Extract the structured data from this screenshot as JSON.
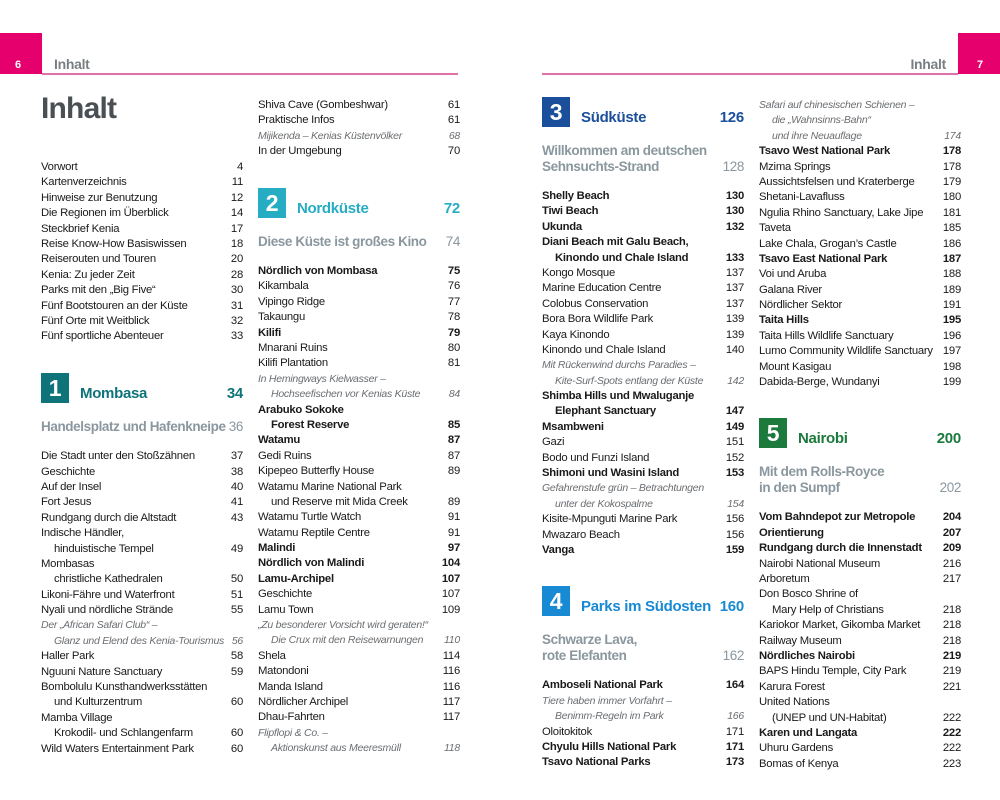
{
  "header": {
    "left_page_number": "6",
    "right_page_number": "7",
    "running_title_left": "Inhalt",
    "running_title_right": "Inhalt",
    "accent_color": "#e5006d"
  },
  "title": "Inhalt",
  "columns": [
    [
      {
        "k": "e",
        "s": "n",
        "t": "Vorwort",
        "p": "4"
      },
      {
        "k": "e",
        "s": "n",
        "t": "Kartenverzeichnis",
        "p": "11"
      },
      {
        "k": "e",
        "s": "n",
        "t": "Hinweise zur Benutzung",
        "p": "12"
      },
      {
        "k": "e",
        "s": "n",
        "t": "Die Regionen im Überblick",
        "p": "14"
      },
      {
        "k": "e",
        "s": "n",
        "t": "Steckbrief Kenia",
        "p": "17"
      },
      {
        "k": "e",
        "s": "n",
        "t": "Reise Know-How Basiswissen",
        "p": "18"
      },
      {
        "k": "e",
        "s": "n",
        "t": "Reiserouten und Touren",
        "p": "20"
      },
      {
        "k": "e",
        "s": "n",
        "t": "Kenia: Zu jeder Zeit",
        "p": "28"
      },
      {
        "k": "e",
        "s": "n",
        "t": "Parks mit den „Big Five“",
        "p": "30"
      },
      {
        "k": "e",
        "s": "n",
        "t": "Fünf Bootstouren an der Küste",
        "p": "31"
      },
      {
        "k": "e",
        "s": "n",
        "t": "Fünf Orte mit Weitblick",
        "p": "32"
      },
      {
        "k": "e",
        "s": "n",
        "t": "Fünf sportliche Abenteuer",
        "p": "33"
      },
      {
        "k": "c",
        "num": "1",
        "t": "Mombasa",
        "p": "34",
        "color": "#0f7479"
      },
      {
        "k": "s",
        "lines": [
          "Handelsplatz und Hafenkneipe"
        ],
        "p": "36"
      },
      {
        "k": "e",
        "s": "n",
        "t": "Die Stadt unter den Stoßzähnen",
        "p": "37"
      },
      {
        "k": "e",
        "s": "n",
        "t": "Geschichte",
        "p": "38"
      },
      {
        "k": "e",
        "s": "n",
        "t": "Auf der Insel",
        "p": "40"
      },
      {
        "k": "e",
        "s": "n",
        "t": "Fort Jesus",
        "p": "41"
      },
      {
        "k": "e",
        "s": "n",
        "t": "Rundgang durch die Altstadt",
        "p": "43"
      },
      {
        "k": "e",
        "s": "n",
        "lines": [
          "Indische Händler,",
          "hinduistische Tempel"
        ],
        "p": "49"
      },
      {
        "k": "e",
        "s": "n",
        "lines": [
          "Mombasas",
          "christliche Kathedralen"
        ],
        "p": "50"
      },
      {
        "k": "e",
        "s": "n",
        "t": "Likoni-Fähre und Waterfront",
        "p": "51"
      },
      {
        "k": "e",
        "s": "n",
        "t": "Nyali und nördliche Strände",
        "p": "55"
      },
      {
        "k": "e",
        "s": "i",
        "lines": [
          "Der „African Safari Club“ –",
          "Glanz und Elend des Kenia-Tourismus"
        ],
        "p": "56"
      },
      {
        "k": "e",
        "s": "n",
        "t": "Haller Park",
        "p": "58"
      },
      {
        "k": "e",
        "s": "n",
        "t": "Nguuni Nature Sanctuary",
        "p": "59"
      },
      {
        "k": "e",
        "s": "n",
        "lines": [
          "Bombolulu Kunsthandwerksstätten",
          "und Kulturzentrum"
        ],
        "p": "60"
      },
      {
        "k": "e",
        "s": "n",
        "lines": [
          "Mamba Village",
          "Krokodil- und Schlangenfarm"
        ],
        "p": "60"
      },
      {
        "k": "e",
        "s": "n",
        "t": "Wild Waters Entertainment Park",
        "p": "60"
      }
    ],
    [
      {
        "k": "e",
        "s": "n",
        "t": "Shiva Cave (Gombeshwar)",
        "p": "61"
      },
      {
        "k": "e",
        "s": "n",
        "t": "Praktische Infos",
        "p": "61"
      },
      {
        "k": "e",
        "s": "i",
        "t": "Mijikenda – Kenias Küstenvölker",
        "p": "68"
      },
      {
        "k": "e",
        "s": "n",
        "t": "In der Umgebung",
        "p": "70"
      },
      {
        "k": "c",
        "num": "2",
        "t": "Nordküste",
        "p": "72",
        "color": "#27adc3"
      },
      {
        "k": "s",
        "lines": [
          "Diese Küste ist großes Kino"
        ],
        "p": "74"
      },
      {
        "k": "e",
        "s": "b",
        "t": "Nördlich von Mombasa",
        "p": "75"
      },
      {
        "k": "e",
        "s": "n",
        "t": "Kikambala",
        "p": "76"
      },
      {
        "k": "e",
        "s": "n",
        "t": "Vipingo Ridge",
        "p": "77"
      },
      {
        "k": "e",
        "s": "n",
        "t": "Takaungu",
        "p": "78"
      },
      {
        "k": "e",
        "s": "b",
        "t": "Kilifi",
        "p": "79"
      },
      {
        "k": "e",
        "s": "n",
        "t": "Mnarani Ruins",
        "p": "80"
      },
      {
        "k": "e",
        "s": "n",
        "t": "Kilifi Plantation",
        "p": "81"
      },
      {
        "k": "e",
        "s": "i",
        "lines": [
          "In Hemingways Kielwasser –",
          "Hochseefischen vor Kenias Küste"
        ],
        "p": "84"
      },
      {
        "k": "e",
        "s": "b",
        "lines": [
          "Arabuko Sokoke",
          "Forest Reserve"
        ],
        "p": "85"
      },
      {
        "k": "e",
        "s": "b",
        "t": "Watamu",
        "p": "87"
      },
      {
        "k": "e",
        "s": "n",
        "t": "Gedi Ruins",
        "p": "87"
      },
      {
        "k": "e",
        "s": "n",
        "t": "Kipepeo Butterfly House",
        "p": "89"
      },
      {
        "k": "e",
        "s": "n",
        "lines": [
          "Watamu Marine National Park",
          "und Reserve mit Mida Creek"
        ],
        "p": "89"
      },
      {
        "k": "e",
        "s": "n",
        "t": "Watamu Turtle Watch",
        "p": "91"
      },
      {
        "k": "e",
        "s": "n",
        "t": "Watamu Reptile Centre",
        "p": "91"
      },
      {
        "k": "e",
        "s": "b",
        "t": "Malindi",
        "p": "97"
      },
      {
        "k": "e",
        "s": "b",
        "t": "Nördlich von Malindi",
        "p": "104"
      },
      {
        "k": "e",
        "s": "b",
        "t": "Lamu-Archipel",
        "p": "107"
      },
      {
        "k": "e",
        "s": "n",
        "t": "Geschichte",
        "p": "107"
      },
      {
        "k": "e",
        "s": "n",
        "t": "Lamu Town",
        "p": "109"
      },
      {
        "k": "e",
        "s": "i",
        "lines": [
          "„Zu besonderer Vorsicht wird geraten!“",
          "Die Crux mit den Reisewarnungen"
        ],
        "p": "110"
      },
      {
        "k": "e",
        "s": "n",
        "t": "Shela",
        "p": "114"
      },
      {
        "k": "e",
        "s": "n",
        "t": "Matondoni",
        "p": "116"
      },
      {
        "k": "e",
        "s": "n",
        "t": "Manda Island",
        "p": "116"
      },
      {
        "k": "e",
        "s": "n",
        "t": "Nördlicher Archipel",
        "p": "117"
      },
      {
        "k": "e",
        "s": "n",
        "t": "Dhau-Fahrten",
        "p": "117"
      },
      {
        "k": "e",
        "s": "i",
        "lines": [
          "Flipflopi & Co. –",
          "Aktionskunst aus Meeresmüll"
        ],
        "p": "118"
      }
    ],
    [
      {
        "k": "c",
        "num": "3",
        "t": "Südküste",
        "p": "126",
        "color": "#1b4f9b"
      },
      {
        "k": "s",
        "lines": [
          "Willkommen am deutschen",
          "Sehnsuchts-Strand"
        ],
        "p": "128"
      },
      {
        "k": "e",
        "s": "b",
        "t": "Shelly Beach",
        "p": "130"
      },
      {
        "k": "e",
        "s": "b",
        "t": "Tiwi Beach",
        "p": "130"
      },
      {
        "k": "e",
        "s": "b",
        "t": "Ukunda",
        "p": "132"
      },
      {
        "k": "e",
        "s": "b",
        "lines": [
          "Diani Beach mit Galu Beach,",
          "Kinondo und Chale Island"
        ],
        "p": "133"
      },
      {
        "k": "e",
        "s": "n",
        "t": "Kongo Mosque",
        "p": "137"
      },
      {
        "k": "e",
        "s": "n",
        "t": "Marine Education Centre",
        "p": "137"
      },
      {
        "k": "e",
        "s": "n",
        "t": "Colobus Conservation",
        "p": "137"
      },
      {
        "k": "e",
        "s": "n",
        "t": "Bora Bora Wildlife Park",
        "p": "139"
      },
      {
        "k": "e",
        "s": "n",
        "t": "Kaya Kinondo",
        "p": "139"
      },
      {
        "k": "e",
        "s": "n",
        "t": "Kinondo und Chale Island",
        "p": "140"
      },
      {
        "k": "e",
        "s": "i",
        "lines": [
          "Mit Rückenwind durchs Paradies –",
          "Kite-Surf-Spots entlang der Küste"
        ],
        "p": "142"
      },
      {
        "k": "e",
        "s": "b",
        "lines": [
          "Shimba Hills und Mwaluganje",
          "Elephant Sanctuary"
        ],
        "p": "147"
      },
      {
        "k": "e",
        "s": "b",
        "t": "Msambweni",
        "p": "149"
      },
      {
        "k": "e",
        "s": "n",
        "t": "Gazi",
        "p": "151"
      },
      {
        "k": "e",
        "s": "n",
        "t": "Bodo und Funzi Island",
        "p": "152"
      },
      {
        "k": "e",
        "s": "b",
        "t": "Shimoni und Wasini Island",
        "p": "153"
      },
      {
        "k": "e",
        "s": "i",
        "lines": [
          "Gefahrenstufe grün – Betrachtungen",
          "unter der Kokospalme"
        ],
        "p": "154"
      },
      {
        "k": "e",
        "s": "n",
        "t": "Kisite-Mpunguti Marine Park",
        "p": "156"
      },
      {
        "k": "e",
        "s": "n",
        "t": "Mwazaro Beach",
        "p": "156"
      },
      {
        "k": "e",
        "s": "b",
        "t": "Vanga",
        "p": "159"
      },
      {
        "k": "c",
        "num": "4",
        "t": "Parks im Südosten",
        "p": "160",
        "color": "#1889d3"
      },
      {
        "k": "s",
        "lines": [
          "Schwarze Lava,",
          "rote Elefanten"
        ],
        "p": "162"
      },
      {
        "k": "e",
        "s": "b",
        "t": "Amboseli National Park",
        "p": "164"
      },
      {
        "k": "e",
        "s": "i",
        "lines": [
          "Tiere haben immer Vorfahrt –",
          "Benimm-Regeln im Park"
        ],
        "p": "166"
      },
      {
        "k": "e",
        "s": "n",
        "t": "Oloitokitok",
        "p": "171"
      },
      {
        "k": "e",
        "s": "b",
        "t": "Chyulu Hills National Park",
        "p": "171"
      },
      {
        "k": "e",
        "s": "b",
        "t": "Tsavo National Parks",
        "p": "173"
      }
    ],
    [
      {
        "k": "e",
        "s": "i",
        "lines": [
          "Safari auf chinesischen Schienen –",
          "die „Wahnsinns-Bahn“",
          "und ihre Neuauflage"
        ],
        "p": "174"
      },
      {
        "k": "e",
        "s": "b",
        "t": "Tsavo West National Park",
        "p": "178"
      },
      {
        "k": "e",
        "s": "n",
        "t": "Mzima Springs",
        "p": "178"
      },
      {
        "k": "e",
        "s": "n",
        "t": "Aussichtsfelsen und Kraterberge",
        "p": "179"
      },
      {
        "k": "e",
        "s": "n",
        "t": "Shetani-Lavafluss",
        "p": "180"
      },
      {
        "k": "e",
        "s": "n",
        "t": "Ngulia Rhino Sanctuary, Lake Jipe",
        "p": "181"
      },
      {
        "k": "e",
        "s": "n",
        "t": "Taveta",
        "p": "185"
      },
      {
        "k": "e",
        "s": "n",
        "t": "Lake Chala, Grogan’s Castle",
        "p": "186"
      },
      {
        "k": "e",
        "s": "b",
        "t": "Tsavo East National Park",
        "p": "187"
      },
      {
        "k": "e",
        "s": "n",
        "t": "Voi und Aruba",
        "p": "188"
      },
      {
        "k": "e",
        "s": "n",
        "t": "Galana River",
        "p": "189"
      },
      {
        "k": "e",
        "s": "n",
        "t": "Nördlicher Sektor",
        "p": "191"
      },
      {
        "k": "e",
        "s": "b",
        "t": "Taita Hills",
        "p": "195"
      },
      {
        "k": "e",
        "s": "n",
        "t": "Taita Hills Wildlife Sanctuary",
        "p": "196"
      },
      {
        "k": "e",
        "s": "n",
        "t": "Lumo Community Wildlife Sanctuary",
        "p": "197"
      },
      {
        "k": "e",
        "s": "n",
        "t": "Mount Kasigau",
        "p": "198"
      },
      {
        "k": "e",
        "s": "n",
        "t": "Dabida-Berge, Wundanyi",
        "p": "199"
      },
      {
        "k": "c",
        "num": "5",
        "t": "Nairobi",
        "p": "200",
        "color": "#1b7a3c"
      },
      {
        "k": "s",
        "lines": [
          "Mit dem Rolls-Royce",
          "in den Sumpf"
        ],
        "p": "202"
      },
      {
        "k": "e",
        "s": "b",
        "t": "Vom Bahndepot zur Metropole",
        "p": "204"
      },
      {
        "k": "e",
        "s": "b",
        "t": "Orientierung",
        "p": "207"
      },
      {
        "k": "e",
        "s": "b",
        "t": "Rundgang durch die Innenstadt",
        "p": "209"
      },
      {
        "k": "e",
        "s": "n",
        "t": "Nairobi National Museum",
        "p": "216"
      },
      {
        "k": "e",
        "s": "n",
        "t": "Arboretum",
        "p": "217"
      },
      {
        "k": "e",
        "s": "n",
        "lines": [
          "Don Bosco Shrine of",
          "Mary Help of Christians"
        ],
        "p": "218"
      },
      {
        "k": "e",
        "s": "n",
        "t": "Kariokor Market, Gikomba Market",
        "p": "218"
      },
      {
        "k": "e",
        "s": "n",
        "t": "Railway Museum",
        "p": "218"
      },
      {
        "k": "e",
        "s": "b",
        "t": "Nördliches Nairobi",
        "p": "219"
      },
      {
        "k": "e",
        "s": "n",
        "t": "BAPS Hindu Temple, City Park",
        "p": "219"
      },
      {
        "k": "e",
        "s": "n",
        "t": "Karura Forest",
        "p": "221"
      },
      {
        "k": "e",
        "s": "n",
        "lines": [
          "United Nations",
          "(UNEP und UN-Habitat)"
        ],
        "p": "222"
      },
      {
        "k": "e",
        "s": "b",
        "t": "Karen und Langata",
        "p": "222"
      },
      {
        "k": "e",
        "s": "n",
        "t": "Uhuru Gardens",
        "p": "222"
      },
      {
        "k": "e",
        "s": "n",
        "t": "Bomas of Kenya",
        "p": "223"
      }
    ]
  ]
}
